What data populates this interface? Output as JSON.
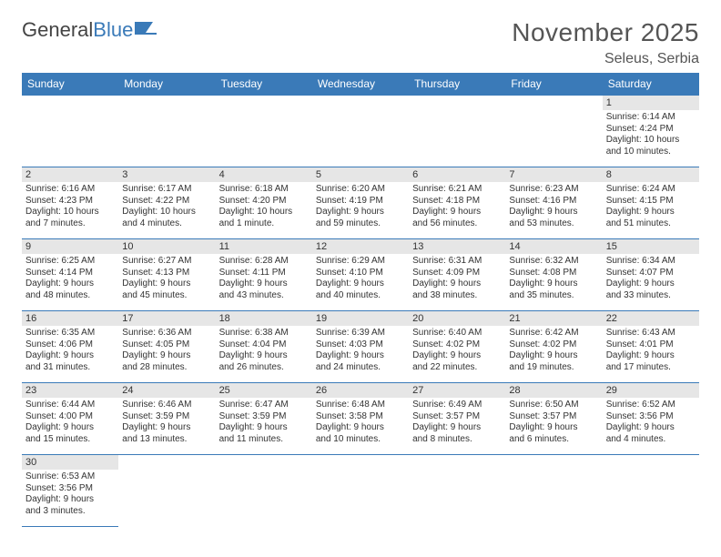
{
  "logo": {
    "text_dark": "General",
    "text_blue": "Blue"
  },
  "title": "November 2025",
  "location": "Seleus, Serbia",
  "colors": {
    "header_bg": "#3a7ab8",
    "grid_line": "#3a7ab8",
    "daynum_bg": "#e6e6e6",
    "page_bg": "#ffffff"
  },
  "day_headers": [
    "Sunday",
    "Monday",
    "Tuesday",
    "Wednesday",
    "Thursday",
    "Friday",
    "Saturday"
  ],
  "weeks": [
    [
      null,
      null,
      null,
      null,
      null,
      null,
      {
        "n": "1",
        "sr": "Sunrise: 6:14 AM",
        "ss": "Sunset: 4:24 PM",
        "d1": "Daylight: 10 hours",
        "d2": "and 10 minutes."
      }
    ],
    [
      {
        "n": "2",
        "sr": "Sunrise: 6:16 AM",
        "ss": "Sunset: 4:23 PM",
        "d1": "Daylight: 10 hours",
        "d2": "and 7 minutes."
      },
      {
        "n": "3",
        "sr": "Sunrise: 6:17 AM",
        "ss": "Sunset: 4:22 PM",
        "d1": "Daylight: 10 hours",
        "d2": "and 4 minutes."
      },
      {
        "n": "4",
        "sr": "Sunrise: 6:18 AM",
        "ss": "Sunset: 4:20 PM",
        "d1": "Daylight: 10 hours",
        "d2": "and 1 minute."
      },
      {
        "n": "5",
        "sr": "Sunrise: 6:20 AM",
        "ss": "Sunset: 4:19 PM",
        "d1": "Daylight: 9 hours",
        "d2": "and 59 minutes."
      },
      {
        "n": "6",
        "sr": "Sunrise: 6:21 AM",
        "ss": "Sunset: 4:18 PM",
        "d1": "Daylight: 9 hours",
        "d2": "and 56 minutes."
      },
      {
        "n": "7",
        "sr": "Sunrise: 6:23 AM",
        "ss": "Sunset: 4:16 PM",
        "d1": "Daylight: 9 hours",
        "d2": "and 53 minutes."
      },
      {
        "n": "8",
        "sr": "Sunrise: 6:24 AM",
        "ss": "Sunset: 4:15 PM",
        "d1": "Daylight: 9 hours",
        "d2": "and 51 minutes."
      }
    ],
    [
      {
        "n": "9",
        "sr": "Sunrise: 6:25 AM",
        "ss": "Sunset: 4:14 PM",
        "d1": "Daylight: 9 hours",
        "d2": "and 48 minutes."
      },
      {
        "n": "10",
        "sr": "Sunrise: 6:27 AM",
        "ss": "Sunset: 4:13 PM",
        "d1": "Daylight: 9 hours",
        "d2": "and 45 minutes."
      },
      {
        "n": "11",
        "sr": "Sunrise: 6:28 AM",
        "ss": "Sunset: 4:11 PM",
        "d1": "Daylight: 9 hours",
        "d2": "and 43 minutes."
      },
      {
        "n": "12",
        "sr": "Sunrise: 6:29 AM",
        "ss": "Sunset: 4:10 PM",
        "d1": "Daylight: 9 hours",
        "d2": "and 40 minutes."
      },
      {
        "n": "13",
        "sr": "Sunrise: 6:31 AM",
        "ss": "Sunset: 4:09 PM",
        "d1": "Daylight: 9 hours",
        "d2": "and 38 minutes."
      },
      {
        "n": "14",
        "sr": "Sunrise: 6:32 AM",
        "ss": "Sunset: 4:08 PM",
        "d1": "Daylight: 9 hours",
        "d2": "and 35 minutes."
      },
      {
        "n": "15",
        "sr": "Sunrise: 6:34 AM",
        "ss": "Sunset: 4:07 PM",
        "d1": "Daylight: 9 hours",
        "d2": "and 33 minutes."
      }
    ],
    [
      {
        "n": "16",
        "sr": "Sunrise: 6:35 AM",
        "ss": "Sunset: 4:06 PM",
        "d1": "Daylight: 9 hours",
        "d2": "and 31 minutes."
      },
      {
        "n": "17",
        "sr": "Sunrise: 6:36 AM",
        "ss": "Sunset: 4:05 PM",
        "d1": "Daylight: 9 hours",
        "d2": "and 28 minutes."
      },
      {
        "n": "18",
        "sr": "Sunrise: 6:38 AM",
        "ss": "Sunset: 4:04 PM",
        "d1": "Daylight: 9 hours",
        "d2": "and 26 minutes."
      },
      {
        "n": "19",
        "sr": "Sunrise: 6:39 AM",
        "ss": "Sunset: 4:03 PM",
        "d1": "Daylight: 9 hours",
        "d2": "and 24 minutes."
      },
      {
        "n": "20",
        "sr": "Sunrise: 6:40 AM",
        "ss": "Sunset: 4:02 PM",
        "d1": "Daylight: 9 hours",
        "d2": "and 22 minutes."
      },
      {
        "n": "21",
        "sr": "Sunrise: 6:42 AM",
        "ss": "Sunset: 4:02 PM",
        "d1": "Daylight: 9 hours",
        "d2": "and 19 minutes."
      },
      {
        "n": "22",
        "sr": "Sunrise: 6:43 AM",
        "ss": "Sunset: 4:01 PM",
        "d1": "Daylight: 9 hours",
        "d2": "and 17 minutes."
      }
    ],
    [
      {
        "n": "23",
        "sr": "Sunrise: 6:44 AM",
        "ss": "Sunset: 4:00 PM",
        "d1": "Daylight: 9 hours",
        "d2": "and 15 minutes."
      },
      {
        "n": "24",
        "sr": "Sunrise: 6:46 AM",
        "ss": "Sunset: 3:59 PM",
        "d1": "Daylight: 9 hours",
        "d2": "and 13 minutes."
      },
      {
        "n": "25",
        "sr": "Sunrise: 6:47 AM",
        "ss": "Sunset: 3:59 PM",
        "d1": "Daylight: 9 hours",
        "d2": "and 11 minutes."
      },
      {
        "n": "26",
        "sr": "Sunrise: 6:48 AM",
        "ss": "Sunset: 3:58 PM",
        "d1": "Daylight: 9 hours",
        "d2": "and 10 minutes."
      },
      {
        "n": "27",
        "sr": "Sunrise: 6:49 AM",
        "ss": "Sunset: 3:57 PM",
        "d1": "Daylight: 9 hours",
        "d2": "and 8 minutes."
      },
      {
        "n": "28",
        "sr": "Sunrise: 6:50 AM",
        "ss": "Sunset: 3:57 PM",
        "d1": "Daylight: 9 hours",
        "d2": "and 6 minutes."
      },
      {
        "n": "29",
        "sr": "Sunrise: 6:52 AM",
        "ss": "Sunset: 3:56 PM",
        "d1": "Daylight: 9 hours",
        "d2": "and 4 minutes."
      }
    ],
    [
      {
        "n": "30",
        "sr": "Sunrise: 6:53 AM",
        "ss": "Sunset: 3:56 PM",
        "d1": "Daylight: 9 hours",
        "d2": "and 3 minutes."
      },
      null,
      null,
      null,
      null,
      null,
      null
    ]
  ]
}
